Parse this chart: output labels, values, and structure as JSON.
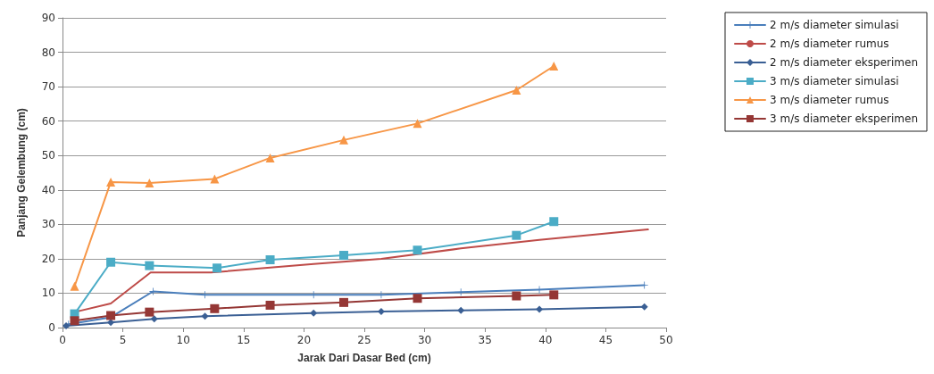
{
  "chart_data": {
    "type": "line",
    "xlabel": "Jarak Dari Dasar Bed (cm)",
    "ylabel": "Panjang Gelembung (cm)",
    "xlim": [
      0,
      50
    ],
    "xticks": [
      0,
      5,
      10,
      15,
      20,
      25,
      30,
      35,
      40,
      45,
      50
    ],
    "ylim": [
      0,
      90
    ],
    "yticks": [
      0,
      10,
      20,
      30,
      40,
      50,
      60,
      70,
      80,
      90
    ],
    "grid": "y",
    "legend": "right",
    "line_style": "solid",
    "series": [
      {
        "name": "2 m/s diameter simulasi",
        "color": "#4a7ebb",
        "marker": "cross",
        "x": [
          0.5,
          4,
          7.5,
          11.8,
          20.8,
          26.4,
          33,
          39.5,
          48.2
        ],
        "values": [
          1,
          3,
          10.5,
          9.5,
          9.5,
          9.5,
          10.3,
          11,
          12.3
        ]
      },
      {
        "name": "2 m/s diameter rumus",
        "color": "#be4b48",
        "marker": "none",
        "x": [
          1,
          4,
          7.3,
          12.3,
          20.8,
          26.4,
          33,
          39.5,
          48.5
        ],
        "values": [
          4.5,
          7,
          16,
          16,
          18.5,
          20,
          23,
          25.5,
          28.5
        ]
      },
      {
        "name": "2 m/s diameter eksperimen",
        "color": "#3a5f94",
        "marker": "diamond",
        "x": [
          0.3,
          4,
          7.6,
          11.8,
          20.8,
          26.4,
          33,
          39.5,
          48.2
        ],
        "values": [
          0.5,
          1.5,
          2.5,
          3.3,
          4.2,
          4.7,
          5,
          5.3,
          6
        ]
      },
      {
        "name": "3 m/s diameter simulasi",
        "color": "#4bacc6",
        "marker": "square",
        "x": [
          1,
          4,
          7.2,
          12.8,
          17.2,
          23.3,
          29.4,
          37.6,
          40.7
        ],
        "values": [
          4,
          19,
          18,
          17.3,
          19.7,
          21,
          22.5,
          26.8,
          30.8
        ]
      },
      {
        "name": "3 m/s diameter rumus",
        "color": "#f79646",
        "marker": "triangle",
        "x": [
          1,
          4,
          7.2,
          12.6,
          17.2,
          23.3,
          29.4,
          37.6,
          40.7
        ],
        "values": [
          12,
          42.3,
          42,
          43.2,
          49.3,
          54.5,
          59.3,
          69,
          76
        ]
      },
      {
        "name": "3 m/s diameter eksperimen",
        "color": "#953735",
        "marker": "square",
        "x": [
          1,
          4,
          7.2,
          12.6,
          17.2,
          23.3,
          29.4,
          37.6,
          40.7
        ],
        "values": [
          2,
          3.5,
          4.5,
          5.5,
          6.5,
          7.3,
          8.5,
          9.2,
          9.5
        ]
      }
    ]
  }
}
